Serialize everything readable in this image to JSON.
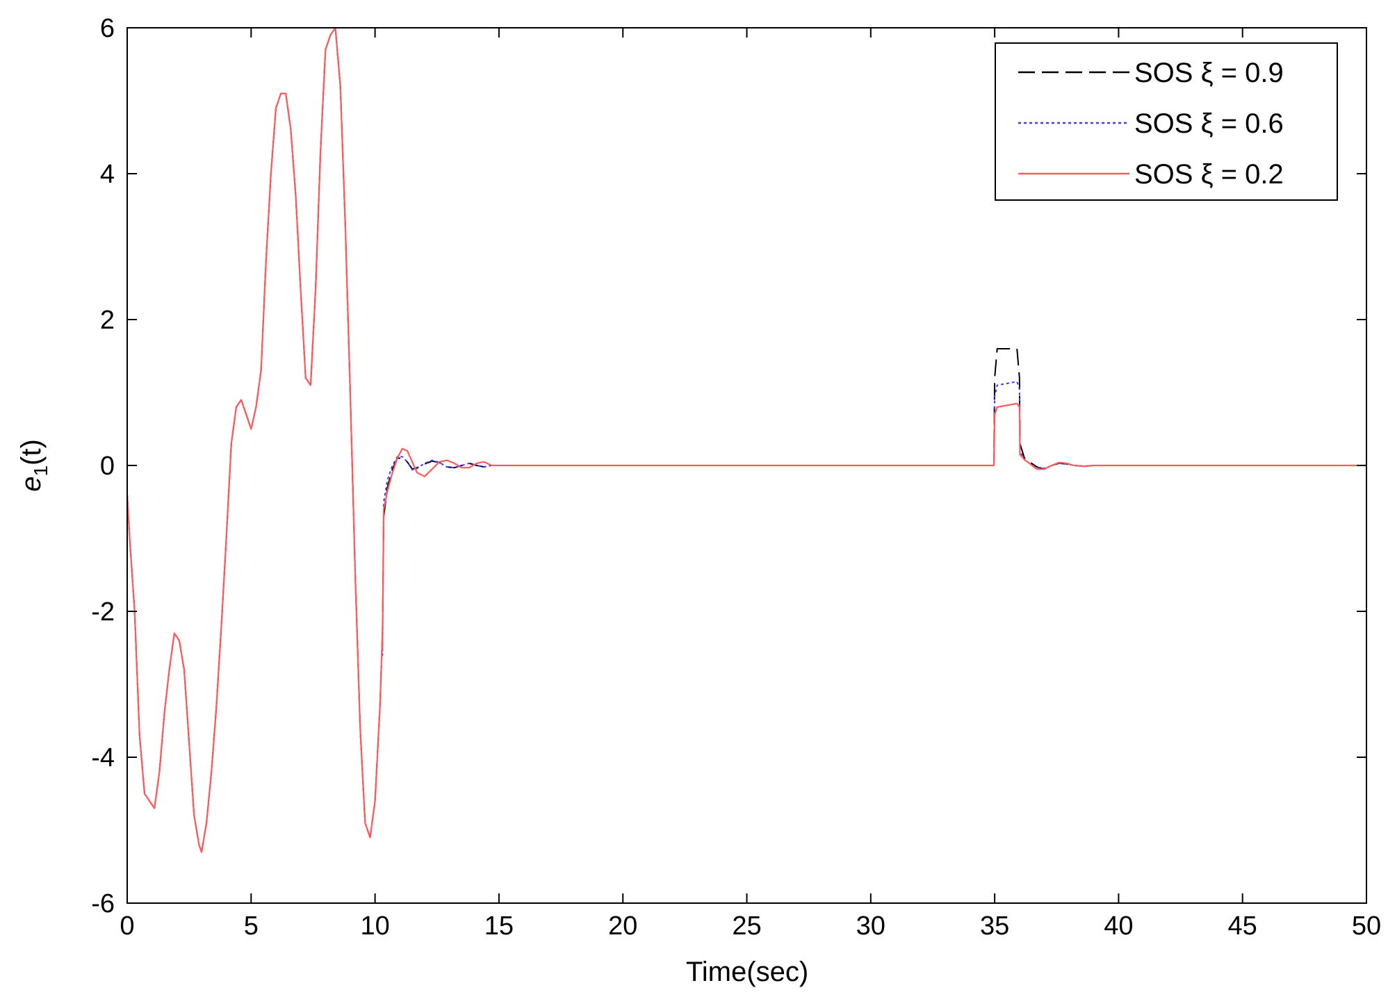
{
  "chart_data": {
    "type": "line",
    "title": "",
    "xlabel": "Time(sec)",
    "ylabel_main": "e",
    "ylabel_sub": "1",
    "ylabel_paren": "(t)",
    "xlim": [
      0,
      50
    ],
    "ylim": [
      -6,
      6
    ],
    "xticks": [
      0,
      5,
      10,
      15,
      20,
      25,
      30,
      35,
      40,
      45,
      50
    ],
    "yticks": [
      -6,
      -4,
      -2,
      0,
      2,
      4,
      6
    ],
    "grid": false,
    "legend_position": "top-right",
    "common": {
      "x": [
        0,
        0.1,
        0.3,
        0.5,
        0.7,
        0.9,
        1.1,
        1.3,
        1.5,
        1.7,
        1.9,
        2.1,
        2.3,
        2.5,
        2.7,
        2.9,
        3.0,
        3.2,
        3.4,
        3.6,
        3.8,
        4.0,
        4.2,
        4.4,
        4.6,
        4.8,
        5.0,
        5.2,
        5.4,
        5.6,
        5.8,
        6.0,
        6.2,
        6.4,
        6.6,
        6.8,
        7.0,
        7.2,
        7.4,
        7.6,
        7.8,
        8.0,
        8.2,
        8.4,
        8.6,
        8.8,
        9.0,
        9.2,
        9.4,
        9.6,
        9.8,
        10.0,
        10.2,
        10.3
      ],
      "y": [
        -0.4,
        -1.0,
        -2.0,
        -3.7,
        -4.5,
        -4.6,
        -4.7,
        -4.2,
        -3.4,
        -2.8,
        -2.3,
        -2.4,
        -2.8,
        -3.8,
        -4.8,
        -5.2,
        -5.3,
        -4.9,
        -4.2,
        -3.3,
        -2.2,
        -1.0,
        0.3,
        0.8,
        0.9,
        0.7,
        0.5,
        0.8,
        1.3,
        2.8,
        4.0,
        4.9,
        5.1,
        5.1,
        4.6,
        3.7,
        2.4,
        1.2,
        1.1,
        2.4,
        4.3,
        5.7,
        5.9,
        6.0,
        5.2,
        3.3,
        1.0,
        -1.5,
        -3.6,
        -4.9,
        -5.1,
        -4.6,
        -3.3,
        -2.3
      ]
    },
    "series": [
      {
        "name": "SOS ξ = 0.9",
        "color": "#000000",
        "dash": "24,10",
        "x": [
          10.3,
          10.35,
          10.5,
          10.7,
          10.9,
          11.1,
          11.3,
          11.5,
          11.7,
          12.0,
          12.3,
          12.6,
          12.9,
          13.2,
          13.5,
          13.8,
          14.1,
          14.4,
          14.7,
          15.0,
          34.97,
          35.0,
          35.1,
          35.9,
          36.0,
          36.02,
          36.2,
          36.4,
          36.7,
          37.0,
          37.3,
          37.6,
          37.9,
          38.2,
          38.6,
          39.0,
          50.0
        ],
        "y": [
          -2.3,
          -0.7,
          -0.3,
          -0.05,
          0.1,
          0.1,
          0.05,
          -0.05,
          -0.03,
          0.02,
          0.06,
          0.04,
          -0.02,
          -0.03,
          0.0,
          0.03,
          0.0,
          -0.02,
          0.0,
          0.0,
          0.0,
          1.2,
          1.6,
          1.6,
          1.2,
          0.3,
          0.1,
          0.05,
          -0.02,
          -0.05,
          0.0,
          0.03,
          0.02,
          0.0,
          -0.01,
          0.0,
          0.0
        ]
      },
      {
        "name": "SOS ξ = 0.6",
        "color": "#3a3aff",
        "dash": "4,4",
        "x": [
          10.3,
          10.35,
          10.5,
          10.7,
          10.9,
          11.1,
          11.3,
          11.5,
          11.7,
          12.0,
          12.3,
          12.6,
          12.9,
          13.2,
          13.5,
          13.8,
          14.1,
          14.4,
          14.7,
          15.0,
          34.97,
          35.0,
          35.1,
          35.9,
          36.0,
          36.02,
          36.2,
          36.4,
          36.7,
          37.0,
          37.3,
          37.6,
          37.9,
          38.2,
          38.6,
          39.0,
          50.0
        ],
        "y": [
          -2.6,
          -0.5,
          -0.2,
          0.0,
          0.12,
          0.12,
          0.05,
          -0.06,
          -0.04,
          0.03,
          0.07,
          0.04,
          -0.02,
          -0.03,
          0.0,
          0.03,
          0.0,
          -0.02,
          0.0,
          0.0,
          0.0,
          0.95,
          1.1,
          1.15,
          1.05,
          0.2,
          0.08,
          0.03,
          -0.03,
          -0.04,
          0.0,
          0.03,
          0.02,
          0.0,
          -0.01,
          0.0,
          0.0
        ]
      },
      {
        "name": "SOS ξ = 0.2",
        "color": "#ff5a5a",
        "dash": "",
        "x": [
          10.3,
          10.35,
          10.5,
          10.7,
          10.9,
          11.1,
          11.3,
          11.5,
          11.7,
          12.0,
          12.3,
          12.6,
          12.9,
          13.2,
          13.5,
          13.8,
          14.1,
          14.4,
          14.7,
          15.0,
          34.97,
          35.0,
          35.1,
          35.9,
          36.0,
          36.02,
          36.2,
          36.4,
          36.7,
          37.0,
          37.3,
          37.6,
          37.9,
          38.2,
          38.6,
          39.0,
          50.0
        ],
        "y": [
          -2.5,
          -0.6,
          -0.35,
          -0.1,
          0.1,
          0.23,
          0.2,
          0.05,
          -0.1,
          -0.15,
          -0.05,
          0.05,
          0.07,
          0.03,
          -0.03,
          -0.03,
          0.03,
          0.05,
          0.0,
          0.0,
          0.0,
          0.7,
          0.8,
          0.85,
          0.8,
          0.15,
          0.08,
          0.03,
          -0.05,
          -0.05,
          0.0,
          0.04,
          0.03,
          0.0,
          -0.01,
          0.0,
          0.0
        ]
      }
    ]
  }
}
